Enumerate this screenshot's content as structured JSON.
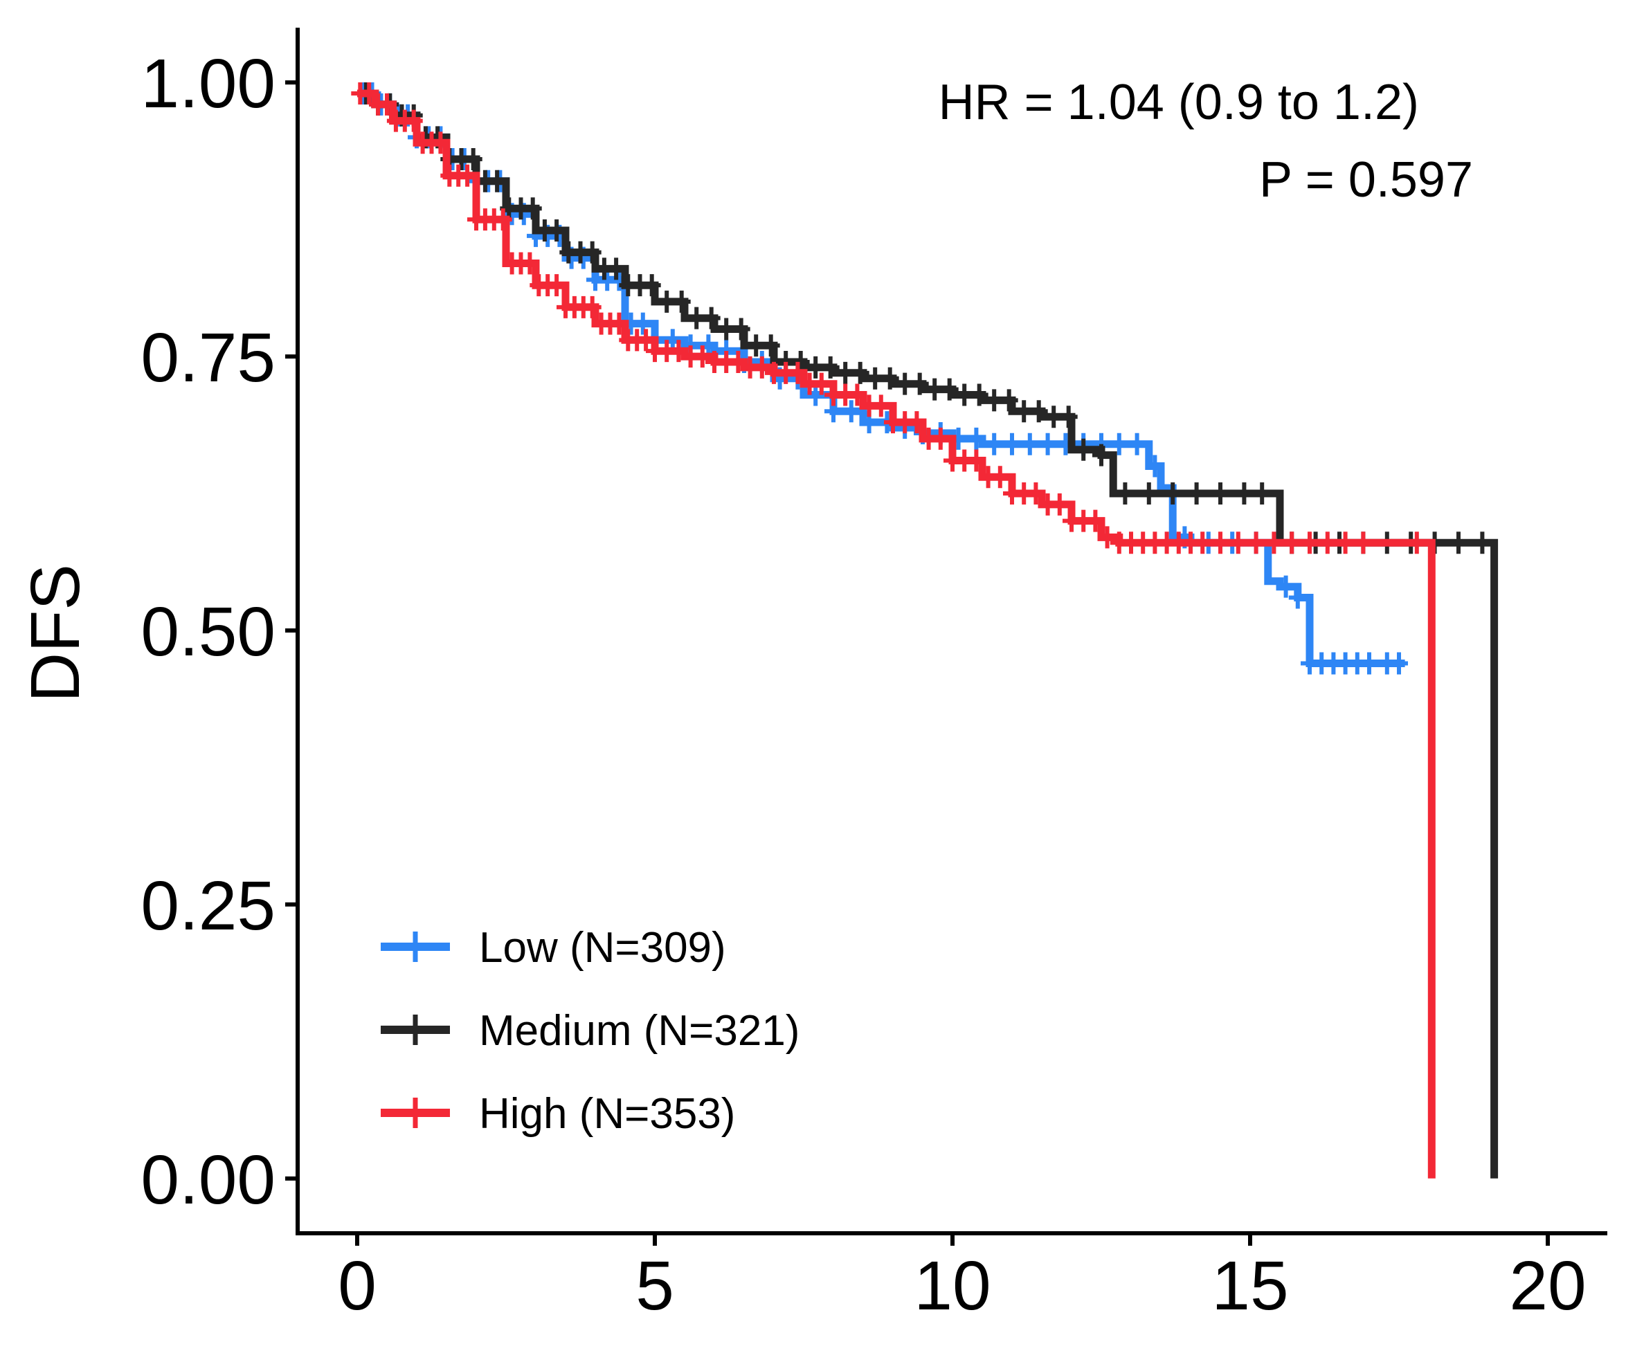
{
  "chart_data": {
    "type": "line",
    "title": "",
    "xlabel": "",
    "ylabel": "DFS",
    "xlim": [
      -1,
      21
    ],
    "ylim": [
      -0.05,
      1.05
    ],
    "xticks": [
      0,
      5,
      10,
      15,
      20
    ],
    "xtick_labels": [
      "0",
      "5",
      "10",
      "15",
      "20"
    ],
    "yticks": [
      0,
      0.25,
      0.5,
      0.75,
      1.0
    ],
    "ytick_labels": [
      "0.00",
      "0.25",
      "0.50",
      "0.75",
      "1.00"
    ],
    "grid": false,
    "legend_position": "bottom-left",
    "annotations": {
      "hr": "HR = 1.04 (0.9 to 1.2)",
      "p": "P = 0.597"
    },
    "series": [
      {
        "name": "Low (N=309)",
        "color": "#2E86F5",
        "x": [
          0,
          0.3,
          0.6,
          1.0,
          1.5,
          2.0,
          2.5,
          3.0,
          3.5,
          4.0,
          4.5,
          5.0,
          5.5,
          6.0,
          6.5,
          7.0,
          7.5,
          8.0,
          8.5,
          9.0,
          9.5,
          10.0,
          10.5,
          11.0,
          11.5,
          12.0,
          12.5,
          13.0,
          13.3,
          13.5,
          13.7,
          14.0,
          15.0,
          15.3,
          15.5,
          15.8,
          16.0,
          17.6
        ],
        "y": [
          0.99,
          0.98,
          0.97,
          0.95,
          0.93,
          0.91,
          0.88,
          0.86,
          0.84,
          0.82,
          0.78,
          0.765,
          0.76,
          0.755,
          0.745,
          0.73,
          0.715,
          0.7,
          0.69,
          0.685,
          0.68,
          0.675,
          0.67,
          0.67,
          0.67,
          0.67,
          0.67,
          0.67,
          0.65,
          0.63,
          0.585,
          0.58,
          0.58,
          0.545,
          0.54,
          0.53,
          0.47,
          0.47
        ],
        "censor_x": [
          0.1,
          0.25,
          0.4,
          0.55,
          0.7,
          0.85,
          1.0,
          1.2,
          1.4,
          1.6,
          1.8,
          2.0,
          2.2,
          2.4,
          2.6,
          2.8,
          3.0,
          3.2,
          3.4,
          3.6,
          3.8,
          4.0,
          4.2,
          4.4,
          4.6,
          4.8,
          5.0,
          5.3,
          5.6,
          5.9,
          6.2,
          6.5,
          6.8,
          7.1,
          7.4,
          7.7,
          8.0,
          8.3,
          8.6,
          8.9,
          9.2,
          9.5,
          9.8,
          10.1,
          10.4,
          10.7,
          11.0,
          11.3,
          11.6,
          11.9,
          12.2,
          12.5,
          12.8,
          13.1,
          13.4,
          13.9,
          14.3,
          14.7,
          15.1,
          15.6,
          15.8,
          16.0,
          16.2,
          16.4,
          16.6,
          16.8,
          17.0,
          17.3,
          17.5
        ]
      },
      {
        "name": "Medium (N=321)",
        "color": "#262626",
        "x": [
          0,
          0.3,
          0.6,
          1.0,
          1.5,
          2.0,
          2.5,
          3.0,
          3.5,
          4.0,
          4.5,
          5.0,
          5.5,
          6.0,
          6.5,
          7.0,
          7.5,
          8.0,
          8.5,
          9.0,
          9.5,
          10.0,
          10.5,
          11.0,
          11.5,
          12.0,
          12.5,
          12.7,
          15.4,
          15.5,
          19.1
        ],
        "y": [
          0.99,
          0.98,
          0.97,
          0.95,
          0.93,
          0.91,
          0.885,
          0.865,
          0.845,
          0.83,
          0.815,
          0.8,
          0.785,
          0.775,
          0.76,
          0.745,
          0.74,
          0.735,
          0.73,
          0.725,
          0.72,
          0.715,
          0.71,
          0.7,
          0.695,
          0.665,
          0.66,
          0.625,
          0.625,
          0.58,
          0.0
        ],
        "censor_x": [
          0.15,
          0.35,
          0.55,
          0.75,
          0.95,
          1.15,
          1.35,
          1.55,
          1.75,
          1.95,
          2.15,
          2.35,
          2.55,
          2.75,
          2.95,
          3.15,
          3.35,
          3.55,
          3.75,
          3.95,
          4.15,
          4.35,
          4.55,
          4.75,
          4.95,
          5.2,
          5.45,
          5.7,
          5.95,
          6.2,
          6.45,
          6.7,
          6.95,
          7.2,
          7.45,
          7.7,
          7.95,
          8.2,
          8.45,
          8.7,
          8.95,
          9.2,
          9.45,
          9.7,
          9.95,
          10.2,
          10.45,
          10.7,
          10.95,
          11.2,
          11.45,
          11.7,
          11.95,
          12.2,
          12.5,
          12.9,
          13.3,
          13.7,
          14.1,
          14.5,
          14.9,
          15.2,
          15.7,
          16.1,
          16.5,
          16.9,
          17.3,
          17.7,
          18.1,
          18.5,
          18.9
        ]
      },
      {
        "name": "High (N=353)",
        "color": "#F32836",
        "x": [
          0,
          0.3,
          0.6,
          1.0,
          1.5,
          2.0,
          2.5,
          3.0,
          3.5,
          4.0,
          4.5,
          5.0,
          5.5,
          6.0,
          6.5,
          7.0,
          7.5,
          8.0,
          8.5,
          9.0,
          9.5,
          10.0,
          10.5,
          11.0,
          11.5,
          12.0,
          12.5,
          12.8,
          18.05
        ],
        "y": [
          0.99,
          0.98,
          0.965,
          0.945,
          0.915,
          0.875,
          0.835,
          0.815,
          0.795,
          0.78,
          0.765,
          0.755,
          0.75,
          0.745,
          0.74,
          0.735,
          0.725,
          0.715,
          0.705,
          0.69,
          0.675,
          0.655,
          0.64,
          0.625,
          0.615,
          0.6,
          0.585,
          0.58,
          0.0
        ],
        "censor_x": [
          0.05,
          0.2,
          0.35,
          0.5,
          0.65,
          0.8,
          0.95,
          1.1,
          1.25,
          1.4,
          1.55,
          1.7,
          1.85,
          2.0,
          2.15,
          2.3,
          2.45,
          2.6,
          2.75,
          2.9,
          3.05,
          3.2,
          3.35,
          3.5,
          3.65,
          3.8,
          3.95,
          4.1,
          4.25,
          4.4,
          4.55,
          4.7,
          4.85,
          5.0,
          5.2,
          5.4,
          5.6,
          5.8,
          6.0,
          6.2,
          6.4,
          6.6,
          6.8,
          7.0,
          7.2,
          7.4,
          7.6,
          7.8,
          8.0,
          8.2,
          8.4,
          8.6,
          8.8,
          9.0,
          9.2,
          9.4,
          9.6,
          9.8,
          10.0,
          10.2,
          10.4,
          10.6,
          10.8,
          11.0,
          11.2,
          11.4,
          11.6,
          11.8,
          12.0,
          12.2,
          12.4,
          12.6,
          12.8,
          13.0,
          13.2,
          13.4,
          13.6,
          13.8,
          14.0,
          14.2,
          14.5,
          14.8,
          15.1,
          15.4,
          15.7,
          16.0,
          16.3,
          16.6,
          16.9,
          17.8
        ]
      }
    ]
  }
}
